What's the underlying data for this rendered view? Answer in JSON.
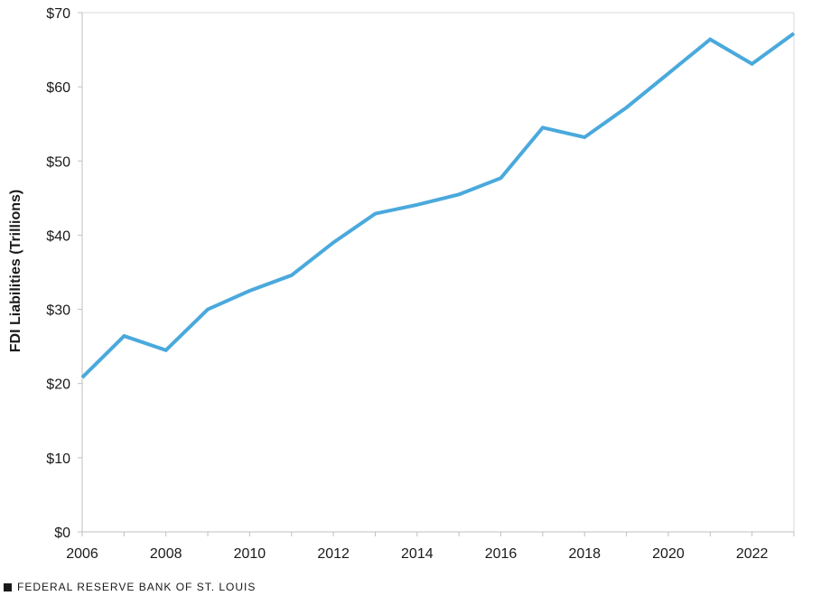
{
  "chart_data": {
    "type": "line",
    "title": "",
    "xlabel": "",
    "ylabel": "FDI Liabilities (Trillions)",
    "x": [
      2006,
      2007,
      2008,
      2009,
      2010,
      2011,
      2012,
      2013,
      2014,
      2015,
      2016,
      2017,
      2018,
      2019,
      2020,
      2021,
      2022,
      2023
    ],
    "series": [
      {
        "values": [
          20.8,
          26.4,
          24.5,
          30.0,
          32.5,
          34.6,
          39.0,
          42.9,
          44.1,
          45.5,
          47.7,
          54.5,
          53.2,
          57.2,
          61.8,
          66.4,
          63.1,
          67.2
        ]
      }
    ],
    "xlim": [
      2006,
      2023
    ],
    "ylim": [
      0,
      70
    ],
    "x_ticks": [
      "2006",
      "2008",
      "2010",
      "2012",
      "2014",
      "2016",
      "2018",
      "2020",
      "2022"
    ],
    "x_tick_values": [
      2006,
      2008,
      2010,
      2012,
      2014,
      2016,
      2018,
      2020,
      2022
    ],
    "y_ticks": [
      "$0",
      "$10",
      "$20",
      "$30",
      "$40",
      "$50",
      "$60",
      "$70"
    ],
    "y_tick_values": [
      0,
      10,
      20,
      30,
      40,
      50,
      60,
      70
    ],
    "grid": false,
    "line_color": "#4aa9dc"
  },
  "footer": {
    "source": "FEDERAL RESERVE BANK OF ST. LOUIS"
  }
}
